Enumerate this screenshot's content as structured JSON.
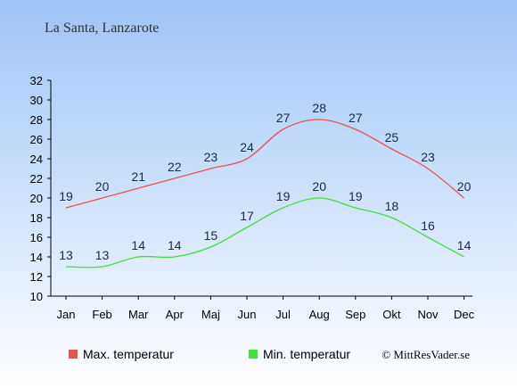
{
  "chart_data": {
    "type": "line",
    "title": "La Santa, Lanzarote",
    "categories": [
      "Jan",
      "Feb",
      "Mar",
      "Apr",
      "Maj",
      "Jun",
      "Jul",
      "Aug",
      "Sep",
      "Okt",
      "Nov",
      "Dec"
    ],
    "ylim": [
      10,
      32
    ],
    "yticks": [
      10,
      12,
      14,
      16,
      18,
      20,
      22,
      24,
      26,
      28,
      30,
      32
    ],
    "grid": false,
    "legend_placement": "bottom-left",
    "series": [
      {
        "name": "Max. temperatur",
        "color": "#e85252",
        "values": [
          19,
          20,
          21,
          22,
          23,
          24,
          27,
          28,
          27,
          25,
          23,
          20
        ]
      },
      {
        "name": "Min. temperatur",
        "color": "#3fe23a",
        "values": [
          13,
          13,
          14,
          14,
          15,
          17,
          19,
          20,
          19,
          18,
          16,
          14
        ]
      }
    ],
    "copyright": "© MittResVader.se"
  },
  "colors": {
    "background_top": "#9ec4f8",
    "background_bottom": "#ffffff",
    "label_color": "#1a2a4a"
  }
}
